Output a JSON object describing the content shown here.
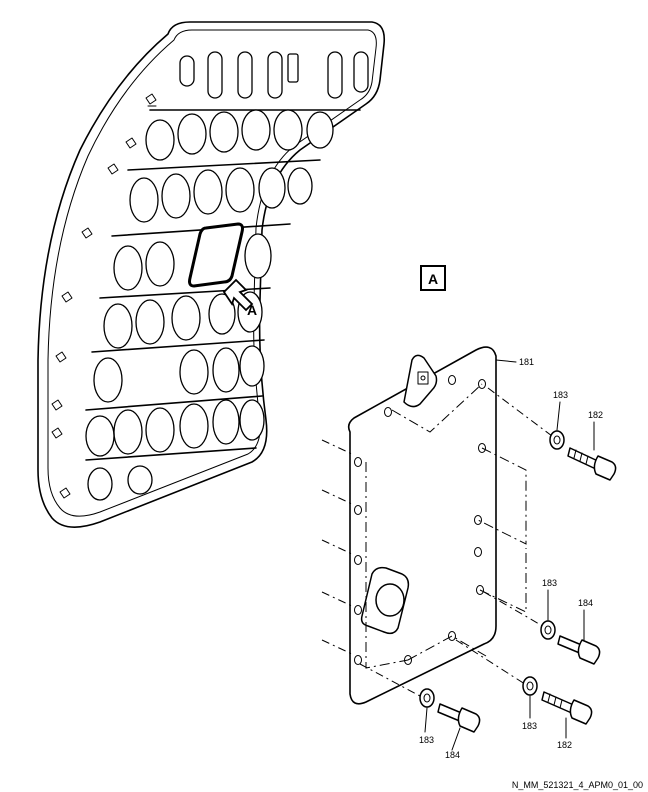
{
  "view_label": "A",
  "arrow_label": "A",
  "callouts": {
    "panel": "181",
    "washer_top": "183",
    "bolt_top": "182",
    "washer_mid": "183",
    "bolt_mid": "184",
    "washer_bottom_left": "183",
    "bolt_bottom_left": "184",
    "washer_bottom_right": "183",
    "bolt_bottom_right": "182"
  },
  "reference_code": "N_MM_521321_4_APM0_01_00"
}
